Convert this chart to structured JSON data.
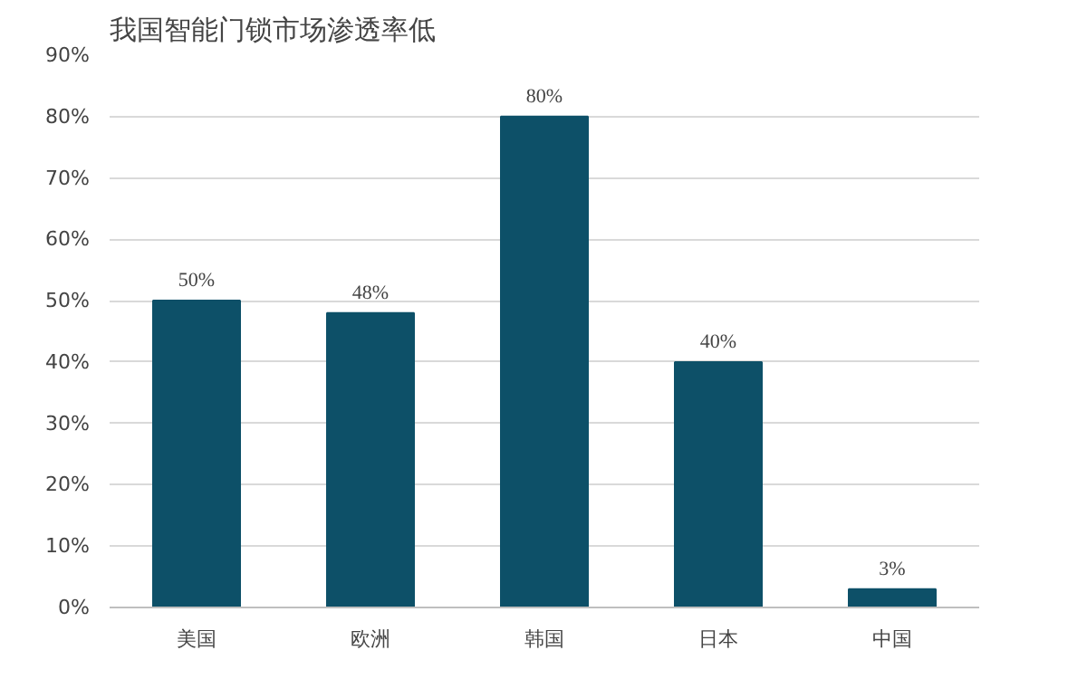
{
  "chart_data": {
    "type": "bar",
    "title": "我国智能门锁市场渗透率低",
    "categories": [
      "美国",
      "欧洲",
      "韩国",
      "日本",
      "中国"
    ],
    "values": [
      50,
      48,
      80,
      40,
      3
    ],
    "value_labels": [
      "50%",
      "48%",
      "80%",
      "40%",
      "3%"
    ],
    "color": "#0d5068",
    "ylim": [
      0,
      90
    ],
    "yticks": [
      {
        "value": 0,
        "label": "0%"
      },
      {
        "value": 10,
        "label": "10%"
      },
      {
        "value": 20,
        "label": "20%"
      },
      {
        "value": 30,
        "label": "30%"
      },
      {
        "value": 40,
        "label": "40%"
      },
      {
        "value": 50,
        "label": "50%"
      },
      {
        "value": 60,
        "label": "60%"
      },
      {
        "value": 70,
        "label": "70%"
      },
      {
        "value": 80,
        "label": "80%"
      },
      {
        "value": 90,
        "label": "90%"
      }
    ],
    "grid": "y"
  }
}
